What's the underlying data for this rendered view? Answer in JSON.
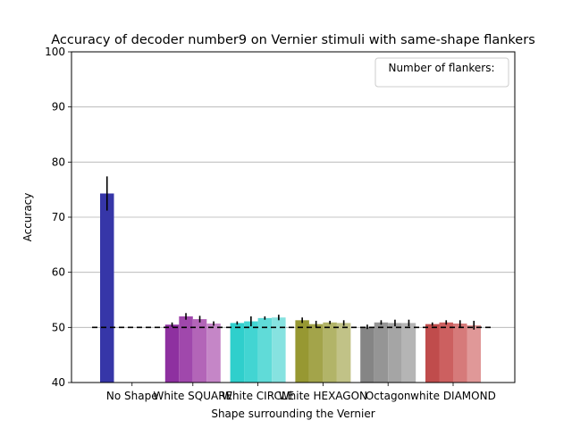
{
  "chart_data": {
    "type": "bar",
    "title": "Accuracy of decoder number9 on Vernier stimuli with same-shape flankers",
    "xlabel": "Shape surrounding the Vernier",
    "ylabel": "Accuracy",
    "ylim": [
      40,
      100
    ],
    "yticks": [
      40,
      50,
      60,
      70,
      80,
      90,
      100
    ],
    "grid": "y",
    "legend": {
      "title": "Number of flankers:",
      "placement": "top-right"
    },
    "chance_level": 50,
    "categories": [
      "No Shape",
      "White SQUARE",
      "White CIRCLE",
      "White HEXAGON",
      "Octagon",
      "white DIAMOND"
    ],
    "groups": [
      {
        "category": "No Shape",
        "colors": [
          "#3636a8"
        ],
        "values": [
          74.3
        ],
        "errors": [
          3.1
        ]
      },
      {
        "category": "White SQUARE",
        "colors": [
          "#8e30a0",
          "#a048ac",
          "#b365b8",
          "#c586c7"
        ],
        "values": [
          50.5,
          52.0,
          51.5,
          50.7
        ],
        "errors": [
          0.4,
          0.6,
          0.6,
          0.4
        ]
      },
      {
        "category": "White CIRCLE",
        "colors": [
          "#2fcfcc",
          "#42d5d2",
          "#60dbd8",
          "#86e2e0"
        ],
        "values": [
          50.8,
          51.1,
          51.7,
          51.8
        ],
        "errors": [
          0.3,
          0.9,
          0.3,
          0.5
        ]
      },
      {
        "category": "White HEXAGON",
        "colors": [
          "#979832",
          "#a3a44a",
          "#b2b468",
          "#c1c287"
        ],
        "values": [
          51.3,
          50.6,
          50.9,
          50.8
        ],
        "errors": [
          0.5,
          0.6,
          0.3,
          0.5
        ]
      },
      {
        "category": "Octagon",
        "colors": [
          "#858585",
          "#959595",
          "#a5a5a5",
          "#b5b5b5"
        ],
        "values": [
          50.1,
          50.9,
          50.8,
          50.8
        ],
        "errors": [
          0.4,
          0.4,
          0.6,
          0.6
        ]
      },
      {
        "category": "white DIAMOND",
        "colors": [
          "#c04c4c",
          "#cc6060",
          "#d67a7a",
          "#e09898"
        ],
        "values": [
          50.6,
          50.9,
          50.7,
          50.4
        ],
        "errors": [
          0.3,
          0.4,
          0.6,
          0.8
        ]
      }
    ]
  }
}
